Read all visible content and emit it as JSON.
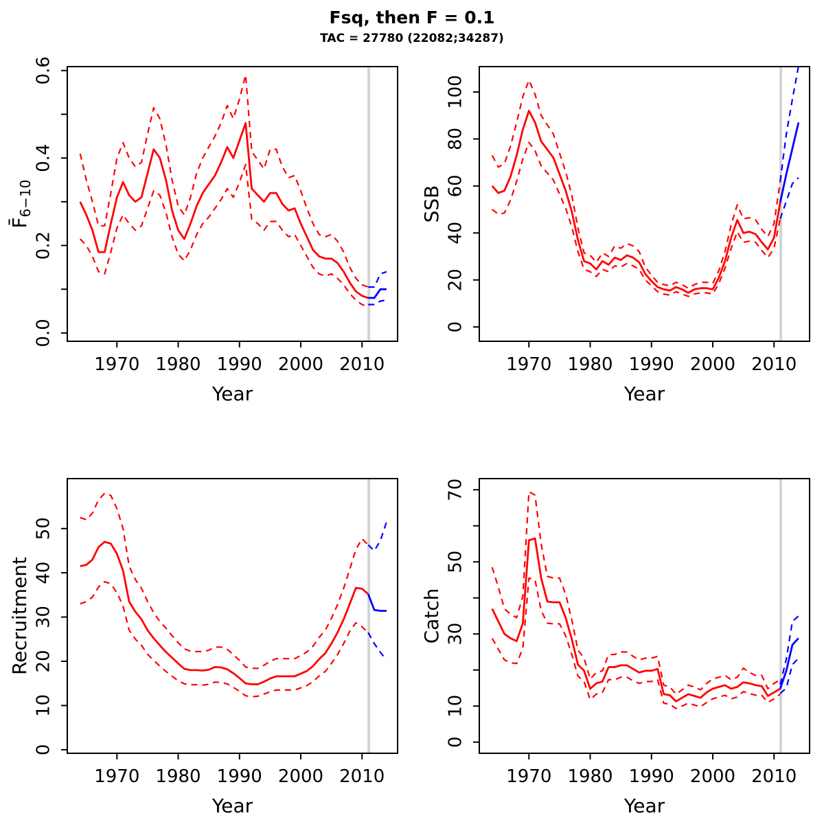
{
  "title": {
    "line1": "Fsq, then F = 0.1",
    "line2": "TAC = 27780 (22082;34287)"
  },
  "colors": {
    "history": "#ff0000",
    "projection": "#0000ff",
    "divider": "#d4d4d4",
    "axis": "#000000",
    "background": "#ffffff"
  },
  "axis": {
    "xlabel": "Year",
    "xlim": [
      1961.9,
      2015.8
    ],
    "xticks": [
      1970,
      1980,
      1990,
      2000,
      2010
    ],
    "grid": false,
    "legend": "none",
    "divider_year": 2011.1,
    "years_history": [
      1964,
      1965,
      1966,
      1967,
      1968,
      1969,
      1970,
      1971,
      1972,
      1973,
      1974,
      1975,
      1976,
      1977,
      1978,
      1979,
      1980,
      1981,
      1982,
      1983,
      1984,
      1985,
      1986,
      1987,
      1988,
      1989,
      1990,
      1991,
      1992,
      1993,
      1994,
      1995,
      1996,
      1997,
      1998,
      1999,
      2000,
      2001,
      2002,
      2003,
      2004,
      2005,
      2006,
      2007,
      2008,
      2009,
      2010,
      2011
    ],
    "years_projection": [
      2011,
      2012,
      2013,
      2014
    ]
  },
  "chart_data": [
    {
      "type": "line",
      "id": "fbar",
      "ylabel": "F̄",
      "ylabel_sub": "6−10",
      "xlabel": "Year",
      "ylim": [
        -0.019,
        0.609
      ],
      "yticks": [
        {
          "v": 0.0,
          "label": "0.0"
        },
        {
          "v": 0.1,
          "label": ""
        },
        {
          "v": 0.2,
          "label": "0.2"
        },
        {
          "v": 0.3,
          "label": ""
        },
        {
          "v": 0.4,
          "label": "0.4"
        },
        {
          "v": 0.5,
          "label": ""
        },
        {
          "v": 0.6,
          "label": "0.6"
        }
      ],
      "history": {
        "median": [
          0.3,
          0.27,
          0.235,
          0.185,
          0.185,
          0.25,
          0.31,
          0.345,
          0.315,
          0.3,
          0.31,
          0.365,
          0.42,
          0.4,
          0.35,
          0.28,
          0.235,
          0.215,
          0.25,
          0.29,
          0.32,
          0.34,
          0.36,
          0.39,
          0.425,
          0.4,
          0.44,
          0.48,
          0.33,
          0.315,
          0.3,
          0.32,
          0.32,
          0.295,
          0.28,
          0.285,
          0.25,
          0.22,
          0.19,
          0.175,
          0.17,
          0.17,
          0.16,
          0.14,
          0.115,
          0.095,
          0.085,
          0.08
        ],
        "upper": [
          0.41,
          0.35,
          0.3,
          0.245,
          0.245,
          0.32,
          0.4,
          0.435,
          0.4,
          0.38,
          0.39,
          0.455,
          0.515,
          0.49,
          0.43,
          0.35,
          0.29,
          0.27,
          0.31,
          0.365,
          0.4,
          0.425,
          0.45,
          0.48,
          0.52,
          0.49,
          0.535,
          0.59,
          0.415,
          0.395,
          0.375,
          0.42,
          0.42,
          0.38,
          0.355,
          0.36,
          0.325,
          0.285,
          0.25,
          0.225,
          0.22,
          0.225,
          0.21,
          0.185,
          0.15,
          0.125,
          0.11,
          0.105
        ],
        "lower": [
          0.215,
          0.2,
          0.175,
          0.14,
          0.135,
          0.185,
          0.24,
          0.27,
          0.25,
          0.235,
          0.245,
          0.285,
          0.325,
          0.315,
          0.275,
          0.22,
          0.18,
          0.165,
          0.19,
          0.225,
          0.25,
          0.265,
          0.285,
          0.305,
          0.33,
          0.31,
          0.345,
          0.385,
          0.26,
          0.25,
          0.235,
          0.255,
          0.255,
          0.235,
          0.22,
          0.225,
          0.2,
          0.175,
          0.15,
          0.135,
          0.13,
          0.135,
          0.125,
          0.11,
          0.09,
          0.075,
          0.065,
          0.06
        ]
      },
      "projection": {
        "median": [
          0.08,
          0.08,
          0.1,
          0.1
        ],
        "upper": [
          0.105,
          0.105,
          0.135,
          0.14
        ],
        "lower": [
          0.065,
          0.065,
          0.073,
          0.075
        ]
      }
    },
    {
      "type": "line",
      "id": "ssb",
      "ylabel": "SSB",
      "ylabel_sub": "",
      "xlabel": "Year",
      "ylim": [
        -6.1,
        110.8
      ],
      "yticks": [
        {
          "v": 0,
          "label": "0"
        },
        {
          "v": 20,
          "label": "20"
        },
        {
          "v": 40,
          "label": "40"
        },
        {
          "v": 60,
          "label": "60"
        },
        {
          "v": 80,
          "label": "80"
        },
        {
          "v": 100,
          "label": "100"
        }
      ],
      "history": {
        "median": [
          60,
          57,
          58,
          64,
          73,
          84,
          92,
          87,
          79,
          75.5,
          72,
          65,
          58,
          49,
          37,
          28,
          27,
          24.5,
          28,
          26.5,
          29.5,
          28.5,
          30.5,
          29.5,
          27.5,
          22.5,
          19.5,
          17,
          16,
          15.5,
          17,
          16,
          14.5,
          16,
          16.5,
          16.5,
          16,
          21,
          28,
          38,
          45.5,
          40,
          40.5,
          39.5,
          36,
          33,
          38,
          53
        ],
        "upper": [
          73,
          68,
          69.5,
          77,
          87,
          98,
          105,
          99,
          90,
          86,
          82,
          74,
          66,
          56,
          42,
          31.5,
          30.5,
          27.5,
          31.5,
          30,
          34.5,
          33.5,
          35.5,
          34.5,
          32,
          25.5,
          22,
          19,
          18,
          17.5,
          19,
          18,
          16.5,
          18,
          19,
          19,
          18.5,
          24,
          32,
          43.5,
          52,
          46,
          46.5,
          45.5,
          41.5,
          38.5,
          44,
          62
        ],
        "lower": [
          50,
          48,
          48.5,
          54,
          62,
          71.5,
          78.5,
          75,
          68.5,
          65.5,
          62.5,
          56.5,
          50.5,
          42.5,
          32,
          24.5,
          23.5,
          21.5,
          24.5,
          23.5,
          26,
          25.5,
          27,
          26,
          24.5,
          20,
          17.5,
          15,
          14,
          13.5,
          15,
          14,
          13,
          14,
          14.5,
          14.5,
          14,
          18.5,
          25,
          33.5,
          40.5,
          36,
          36.5,
          36,
          32.5,
          29.5,
          33.5,
          46
        ]
      },
      "projection": {
        "median": [
          53,
          65,
          76,
          87
        ],
        "upper": [
          62,
          82,
          97,
          111
        ],
        "lower": [
          46,
          53.5,
          61,
          63.5
        ]
      }
    },
    {
      "type": "line",
      "id": "recruitment",
      "ylabel": "Recruitment",
      "ylabel_sub": "",
      "xlabel": "Year",
      "ylim": [
        -0.8,
        61.3
      ],
      "yticks": [
        {
          "v": 0,
          "label": "0"
        },
        {
          "v": 10,
          "label": "10"
        },
        {
          "v": 20,
          "label": "20"
        },
        {
          "v": 30,
          "label": "30"
        },
        {
          "v": 40,
          "label": "40"
        },
        {
          "v": 50,
          "label": "50"
        }
      ],
      "history": {
        "median": [
          41.5,
          41.8,
          43,
          45.8,
          47,
          46.6,
          44.3,
          40.5,
          33.5,
          31.2,
          29.5,
          27,
          25.2,
          23.6,
          22.1,
          20.8,
          19.5,
          18.3,
          18,
          18,
          17.9,
          18.1,
          18.7,
          18.6,
          18.2,
          17.3,
          16.2,
          15,
          14.8,
          14.8,
          15.4,
          16.1,
          16.6,
          16.6,
          16.6,
          16.6,
          17.2,
          17.8,
          18.9,
          20.5,
          21.8,
          24,
          26.5,
          29.5,
          33,
          36.6,
          36.4,
          35.2
        ],
        "upper": [
          52.5,
          52,
          53.5,
          56.5,
          58,
          57.5,
          54.5,
          50,
          41.5,
          38.5,
          36.5,
          33.5,
          31,
          29,
          27.5,
          25.8,
          24.2,
          22.8,
          22.3,
          22.2,
          22.2,
          22.5,
          23.2,
          23.2,
          22.7,
          21.5,
          20.2,
          18.7,
          18.4,
          18.4,
          19.1,
          20,
          20.6,
          20.6,
          20.6,
          20.6,
          21.3,
          22.1,
          23.4,
          25.4,
          27,
          29.7,
          32.8,
          36.5,
          40.8,
          45.3,
          47.7,
          46.3
        ],
        "lower": [
          33,
          33.5,
          34.5,
          36.8,
          38,
          37.5,
          35.5,
          32.5,
          27,
          25,
          23.6,
          21.6,
          20.2,
          18.9,
          17.7,
          16.6,
          15.6,
          14.9,
          14.7,
          14.7,
          14.6,
          14.8,
          15.3,
          15.2,
          14.9,
          14.1,
          13.2,
          12.2,
          12,
          12.1,
          12.6,
          13.1,
          13.5,
          13.5,
          13.5,
          13.5,
          14,
          14.5,
          15.4,
          16.7,
          17.7,
          19.5,
          21.5,
          24,
          26.8,
          28.7,
          27.8,
          26.5
        ]
      },
      "projection": {
        "median": [
          35.2,
          31.6,
          31.4,
          31.4
        ],
        "upper": [
          46.3,
          45,
          47.3,
          51.5
        ],
        "lower": [
          26.5,
          24,
          22,
          20.3
        ]
      }
    },
    {
      "type": "line",
      "id": "catch",
      "ylabel": "Catch",
      "ylabel_sub": "",
      "xlabel": "Year",
      "ylim": [
        -3.1,
        73.1
      ],
      "yticks": [
        {
          "v": 0,
          "label": "0"
        },
        {
          "v": 10,
          "label": "10"
        },
        {
          "v": 20,
          "label": ""
        },
        {
          "v": 30,
          "label": "30"
        },
        {
          "v": 40,
          "label": ""
        },
        {
          "v": 50,
          "label": "50"
        },
        {
          "v": 60,
          "label": ""
        },
        {
          "v": 70,
          "label": "70"
        }
      ],
      "history": {
        "median": [
          37,
          33.5,
          30,
          28.8,
          28,
          33,
          56,
          56.5,
          45.5,
          39,
          38.8,
          38.8,
          34.5,
          28.5,
          21.5,
          19.8,
          14.8,
          16.3,
          16.8,
          20.8,
          20.8,
          21.3,
          21.3,
          20.3,
          19.3,
          19.8,
          19.8,
          20.3,
          13.3,
          13,
          11.3,
          12.3,
          13.3,
          12.8,
          12.3,
          13.8,
          14.8,
          15.3,
          15.8,
          14.8,
          15.3,
          16.6,
          16.3,
          15.8,
          15.5,
          12.8,
          13.8,
          14.8
        ],
        "upper": [
          48.5,
          43,
          37,
          35.5,
          34.5,
          40.5,
          69.5,
          68.5,
          55,
          46,
          45.5,
          45.5,
          41,
          33.8,
          25.5,
          23.3,
          17.5,
          19.3,
          19.8,
          24.3,
          24.3,
          25,
          25,
          23.8,
          22.8,
          23.3,
          23.3,
          23.8,
          15.8,
          15.3,
          13.3,
          14.5,
          15.8,
          15.3,
          14.5,
          16.3,
          17.5,
          18,
          18.5,
          17.3,
          18,
          20.5,
          19.3,
          18.5,
          18.5,
          14.8,
          16.3,
          17.3
        ],
        "lower": [
          28.8,
          25.8,
          22.8,
          22,
          21.8,
          26,
          45.5,
          45,
          36.5,
          33,
          32.8,
          32.8,
          29.5,
          24.3,
          18.3,
          16.8,
          11.8,
          13.3,
          13.8,
          17.3,
          17.3,
          18,
          18,
          17,
          16.3,
          16.8,
          16.8,
          17.3,
          10.8,
          10.5,
          9.3,
          10,
          10.8,
          10.3,
          9.8,
          11,
          12,
          12.5,
          13,
          12,
          12.5,
          14,
          13.5,
          13,
          13,
          11,
          12,
          13.3
        ]
      },
      "projection": {
        "median": [
          14.8,
          19.8,
          27,
          28.8
        ],
        "upper": [
          16,
          23,
          33.5,
          35
        ],
        "lower": [
          13.5,
          15,
          21.5,
          23.3
        ]
      }
    }
  ]
}
